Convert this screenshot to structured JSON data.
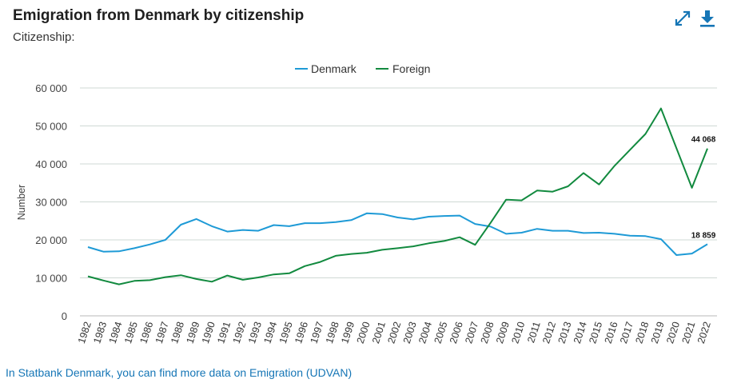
{
  "header": {
    "title": "Emigration from Denmark by citizenship",
    "subtitle": "Citizenship:"
  },
  "toolbar": {
    "expand_icon": "expand-icon",
    "download_icon": "download-icon",
    "accent_color": "#1676b6"
  },
  "footer": {
    "link_text": "In Statbank Denmark, you can find more data on Emigration (UDVAN)"
  },
  "chart_data": {
    "type": "line",
    "title": "Emigration from Denmark by citizenship",
    "xlabel": "",
    "ylabel": "Number",
    "ylim": [
      0,
      60000
    ],
    "yticks": [
      0,
      10000,
      20000,
      30000,
      40000,
      50000,
      60000
    ],
    "ytick_labels": [
      "0",
      "10 000",
      "20 000",
      "30 000",
      "40 000",
      "50 000",
      "60 000"
    ],
    "grid": true,
    "legend_position": "top-center",
    "x": [
      "1982",
      "1983",
      "1984",
      "1985",
      "1986",
      "1987",
      "1988",
      "1989",
      "1990",
      "1991",
      "1992",
      "1993",
      "1994",
      "1995",
      "1996",
      "1997",
      "1998",
      "1999",
      "2000",
      "2001",
      "2002",
      "2003",
      "2004",
      "2005",
      "2006",
      "2007",
      "2008",
      "2009",
      "2010",
      "2011",
      "2012",
      "2013",
      "2014",
      "2015",
      "2016",
      "2017",
      "2018",
      "2019",
      "2020",
      "2021",
      "2022"
    ],
    "series": [
      {
        "name": "Denmark",
        "color": "#1e9ad6",
        "values": [
          18100,
          16900,
          17000,
          17800,
          18800,
          20000,
          24000,
          25500,
          23600,
          22200,
          22600,
          22400,
          23900,
          23600,
          24400,
          24400,
          24700,
          25200,
          27000,
          26800,
          25900,
          25400,
          26100,
          26300,
          26400,
          24200,
          23500,
          21600,
          21900,
          22900,
          22400,
          22400,
          21800,
          21900,
          21600,
          21100,
          21000,
          20200,
          16000,
          16400,
          18859
        ],
        "end_label": "18 859"
      },
      {
        "name": "Foreign",
        "color": "#128a3f",
        "values": [
          10400,
          9300,
          8300,
          9200,
          9400,
          10200,
          10700,
          9700,
          9000,
          10600,
          9500,
          10100,
          10900,
          11200,
          13100,
          14200,
          15800,
          16300,
          16600,
          17400,
          17800,
          18300,
          19100,
          19700,
          20700,
          18700,
          24500,
          30600,
          30400,
          33000,
          32700,
          34100,
          37600,
          34600,
          39500,
          43700,
          47900,
          54600,
          44100,
          33700,
          44068
        ],
        "end_label": "44 068"
      }
    ]
  }
}
